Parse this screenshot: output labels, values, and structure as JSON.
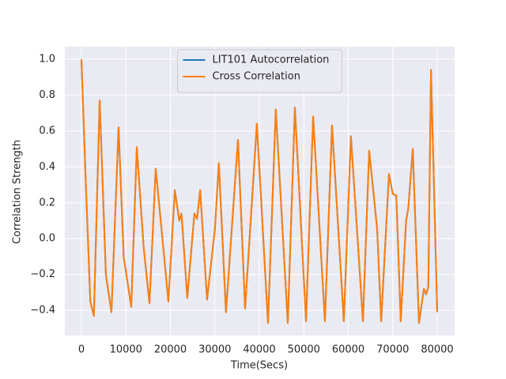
{
  "chart_data": {
    "type": "line",
    "x_label": "Time(Secs)",
    "y_label": "Correlation Strength",
    "x": [
      0,
      1000,
      2000,
      2800,
      4100,
      5500,
      6750,
      8350,
      9500,
      11200,
      12450,
      14000,
      15300,
      16700,
      18100,
      19550,
      21000,
      22000,
      22500,
      23800,
      25400,
      26000,
      26700,
      28250,
      30000,
      30900,
      32500,
      35200,
      36800,
      39450,
      41950,
      43700,
      46400,
      48000,
      50500,
      52100,
      54750,
      56350,
      59000,
      60600,
      63300,
      64700,
      65900,
      66500,
      67400,
      69150,
      70000,
      70800,
      71800,
      73000,
      73500,
      74500,
      75900,
      77000,
      77500,
      78000,
      78600,
      80000
    ],
    "series": [
      {
        "name": "LIT101 Autocorrelation",
        "color": "#1f77b4",
        "values": [
          1.0,
          0.3,
          -0.35,
          -0.43,
          0.77,
          -0.2,
          -0.41,
          0.62,
          -0.1,
          -0.38,
          0.51,
          -0.05,
          -0.36,
          0.39,
          0.03,
          -0.35,
          0.27,
          0.1,
          0.14,
          -0.33,
          0.14,
          0.11,
          0.27,
          -0.34,
          0.05,
          0.42,
          -0.41,
          0.55,
          -0.39,
          0.64,
          -0.47,
          0.72,
          -0.47,
          0.73,
          -0.46,
          0.68,
          -0.46,
          0.63,
          -0.46,
          0.57,
          -0.46,
          0.49,
          0.2,
          0.05,
          -0.46,
          0.36,
          0.25,
          0.24,
          -0.46,
          0.1,
          0.17,
          0.5,
          -0.47,
          -0.28,
          -0.31,
          -0.27,
          0.94,
          -0.41
        ]
      },
      {
        "name": "Cross Correlation",
        "color": "#ff7f0e",
        "values": [
          1.0,
          0.3,
          -0.35,
          -0.43,
          0.77,
          -0.2,
          -0.41,
          0.62,
          -0.1,
          -0.38,
          0.51,
          -0.05,
          -0.36,
          0.39,
          0.03,
          -0.35,
          0.27,
          0.1,
          0.14,
          -0.33,
          0.14,
          0.11,
          0.27,
          -0.34,
          0.05,
          0.42,
          -0.41,
          0.55,
          -0.39,
          0.64,
          -0.47,
          0.72,
          -0.47,
          0.73,
          -0.46,
          0.68,
          -0.46,
          0.63,
          -0.46,
          0.57,
          -0.46,
          0.49,
          0.2,
          0.05,
          -0.46,
          0.36,
          0.25,
          0.24,
          -0.46,
          0.1,
          0.17,
          0.5,
          -0.47,
          -0.28,
          -0.31,
          -0.27,
          0.94,
          -0.41
        ]
      }
    ],
    "xlim": [
      -3733,
      83911
    ],
    "ylim": [
      -0.54,
      1.07
    ],
    "xticks": [
      0,
      10000,
      20000,
      30000,
      40000,
      50000,
      60000,
      70000,
      80000
    ],
    "yticks": [
      {
        "value": -0.4,
        "label": "−0.4"
      },
      {
        "value": -0.2,
        "label": "−0.2"
      },
      {
        "value": 0,
        "label": "0.0"
      },
      0.2,
      0.4,
      0.6,
      0.8,
      {
        "value": 1,
        "label": "1.0"
      }
    ],
    "grid": true,
    "legend": "upper center"
  }
}
